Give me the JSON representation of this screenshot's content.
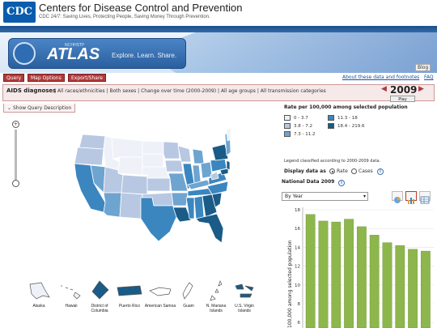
{
  "header": {
    "logo_text": "CDC",
    "title": "Centers for Disease Control and Prevention",
    "tagline": "CDC 24/7: Saving Lives, Protecting People, Saving Money Through Prevention."
  },
  "banner": {
    "small_label": "NCHHSTP",
    "atlas_word": "ATLAS",
    "tagline": "Explore. Learn. Share.",
    "blog_label": "Blog"
  },
  "toolbar": {
    "query_label": "Query",
    "map_options_label": "Map Options",
    "export_label": "Export/Share",
    "about_link": "About these data and footnotes",
    "faq_link": "FAQ"
  },
  "query": {
    "label": "AIDS diagnoses",
    "description": "| All races/ethnicities | Both sexes | Change over time (2000-2009) | All age groups | All transmission categories",
    "year": "2009",
    "play_label": "Play",
    "show_query_label": "Show Query Description"
  },
  "legend": {
    "title": "Rate per 100,000 among selected population",
    "items": [
      {
        "label": "0 - 3.7",
        "color": "#eef2f8"
      },
      {
        "label": "3.8 - 7.2",
        "color": "#b8c8e2"
      },
      {
        "label": "7.3 - 11.2",
        "color": "#6ea4d0"
      },
      {
        "label": "11.3 - 18",
        "color": "#3b86bf"
      },
      {
        "label": "18.4 - 219.6",
        "color": "#1a5b87"
      }
    ],
    "note": "Legend classified according to 2000-2009 data."
  },
  "display": {
    "label": "Display data as",
    "rate_label": "Rate",
    "cases_label": "Cases",
    "selected": "Rate"
  },
  "national": {
    "title": "National Data 2009",
    "by_select_value": "By Year"
  },
  "territories": [
    {
      "label": "Alaska"
    },
    {
      "label": "Hawaii"
    },
    {
      "label": "District of Columbia"
    },
    {
      "label": "Puerto Rico"
    },
    {
      "label": "American Samoa"
    },
    {
      "label": "Guam"
    },
    {
      "label": "N. Mariana Islands"
    },
    {
      "label": "U.S. Virgin Islands"
    }
  ],
  "chart_data": {
    "type": "bar",
    "ylabel": "100,000 among selected population",
    "ylim": [
      6,
      18
    ],
    "yticks": [
      6,
      8,
      10,
      12,
      14,
      16,
      18
    ],
    "bar_color": "#8db64c",
    "values": [
      17.5,
      16.8,
      16.7,
      17.0,
      16.2,
      15.3,
      14.5,
      14.2,
      13.8,
      13.6
    ]
  }
}
